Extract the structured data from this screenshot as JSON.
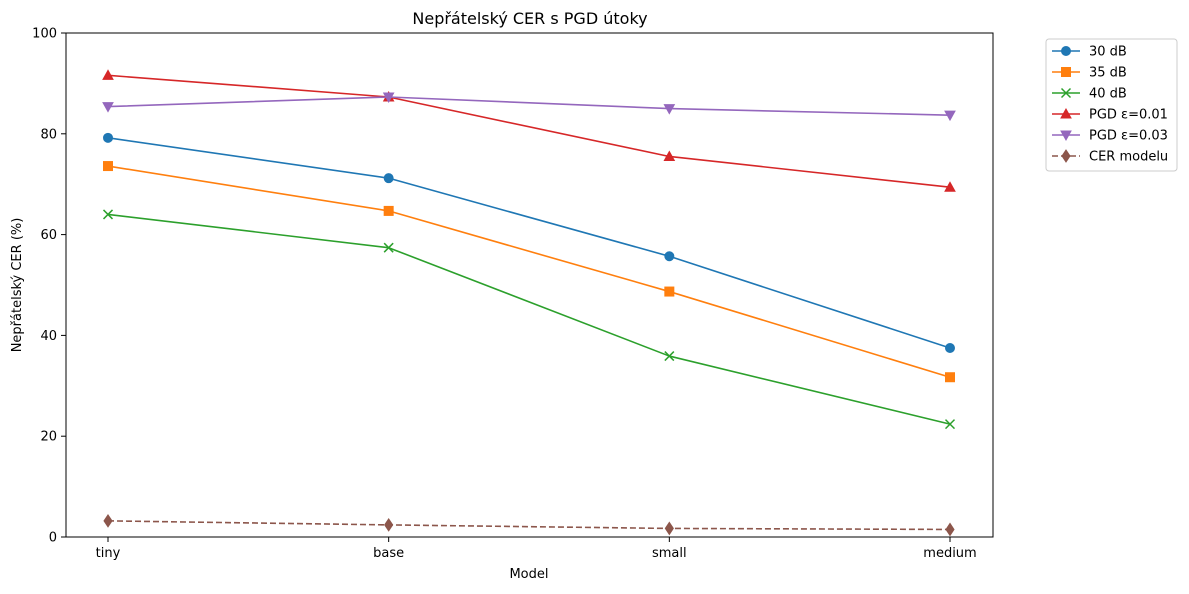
{
  "chart_data": {
    "type": "line",
    "title": "Nepřátelský CER s PGD útoky",
    "xlabel": "Model",
    "ylabel": "Nepřátelský CER (%)",
    "categories": [
      "tiny",
      "base",
      "small",
      "medium"
    ],
    "ylim": [
      0,
      100
    ],
    "yticks": [
      0,
      20,
      40,
      60,
      80,
      100
    ],
    "grid": false,
    "legend_position": "outside right, top",
    "series": [
      {
        "name": "30 dB",
        "values": [
          79.2,
          71.2,
          55.7,
          37.5
        ],
        "color": "#1f77b4",
        "marker": "circle",
        "dashed": false
      },
      {
        "name": "35 dB",
        "values": [
          73.6,
          64.7,
          48.7,
          31.7
        ],
        "color": "#ff7f0e",
        "marker": "square",
        "dashed": false
      },
      {
        "name": "40 dB",
        "values": [
          64.0,
          57.4,
          35.9,
          22.4
        ],
        "color": "#2ca02c",
        "marker": "x",
        "dashed": false
      },
      {
        "name": "PGD ε=0.01",
        "values": [
          91.6,
          87.3,
          75.5,
          69.4
        ],
        "color": "#d62728",
        "marker": "triangle-up",
        "dashed": false
      },
      {
        "name": "PGD ε=0.03",
        "values": [
          85.4,
          87.3,
          85.0,
          83.7
        ],
        "color": "#9467bd",
        "marker": "triangle-down",
        "dashed": false
      },
      {
        "name": "CER modelu",
        "values": [
          3.2,
          2.4,
          1.7,
          1.5
        ],
        "color": "#8c564b",
        "marker": "diamond",
        "dashed": true
      }
    ]
  }
}
